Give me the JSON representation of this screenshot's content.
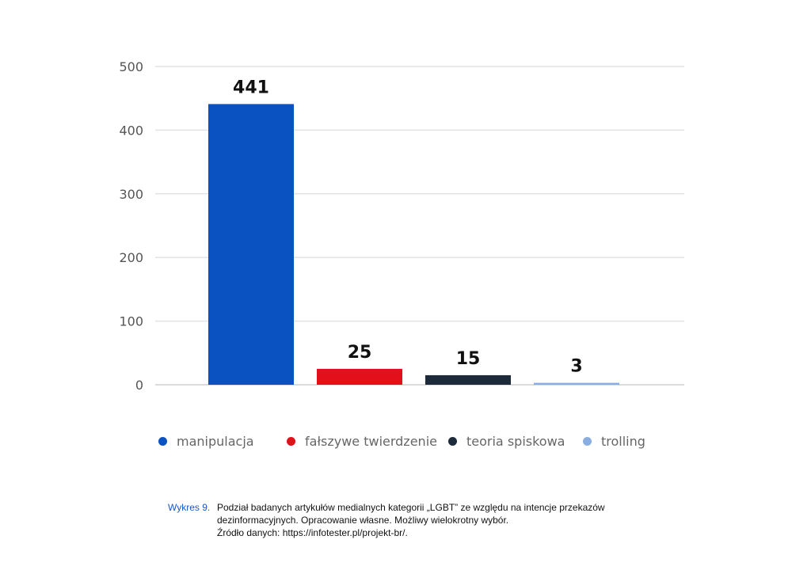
{
  "chart_data": {
    "type": "bar",
    "categories": [
      "manipulacja",
      "fałszywe twierdzenie",
      "teoria spiskowa",
      "trolling"
    ],
    "values": [
      441,
      25,
      15,
      3
    ],
    "data_labels": [
      "441",
      "25",
      "15",
      "3"
    ],
    "colors": [
      "#0a52c2",
      "#e3101b",
      "#1d2a3a",
      "#8aaee0"
    ],
    "ylim": [
      0,
      500
    ],
    "yticks": [
      0,
      100,
      200,
      300,
      400,
      500
    ],
    "ytick_labels": [
      "0",
      "100",
      "200",
      "300",
      "400",
      "500"
    ],
    "grid": true,
    "legend_position": "bottom"
  },
  "legend": {
    "items": [
      {
        "label": "manipulacja",
        "color": "#0a52c2"
      },
      {
        "label": "fałszywe twierdzenie",
        "color": "#e3101b"
      },
      {
        "label": "teoria spiskowa",
        "color": "#1d2a3a"
      },
      {
        "label": "trolling",
        "color": "#8aaee0"
      }
    ]
  },
  "caption": {
    "label": "Wykres 9.",
    "line1": "Podział badanych artykułów medialnych kategorii „LGBT” ze względu na intencje przekazów",
    "line2": "dezinformacyjnych. Opracowanie własne. Możliwy wielokrotny wybór.",
    "line3": "Źródło danych: https://infotester.pl/projekt-br/."
  }
}
